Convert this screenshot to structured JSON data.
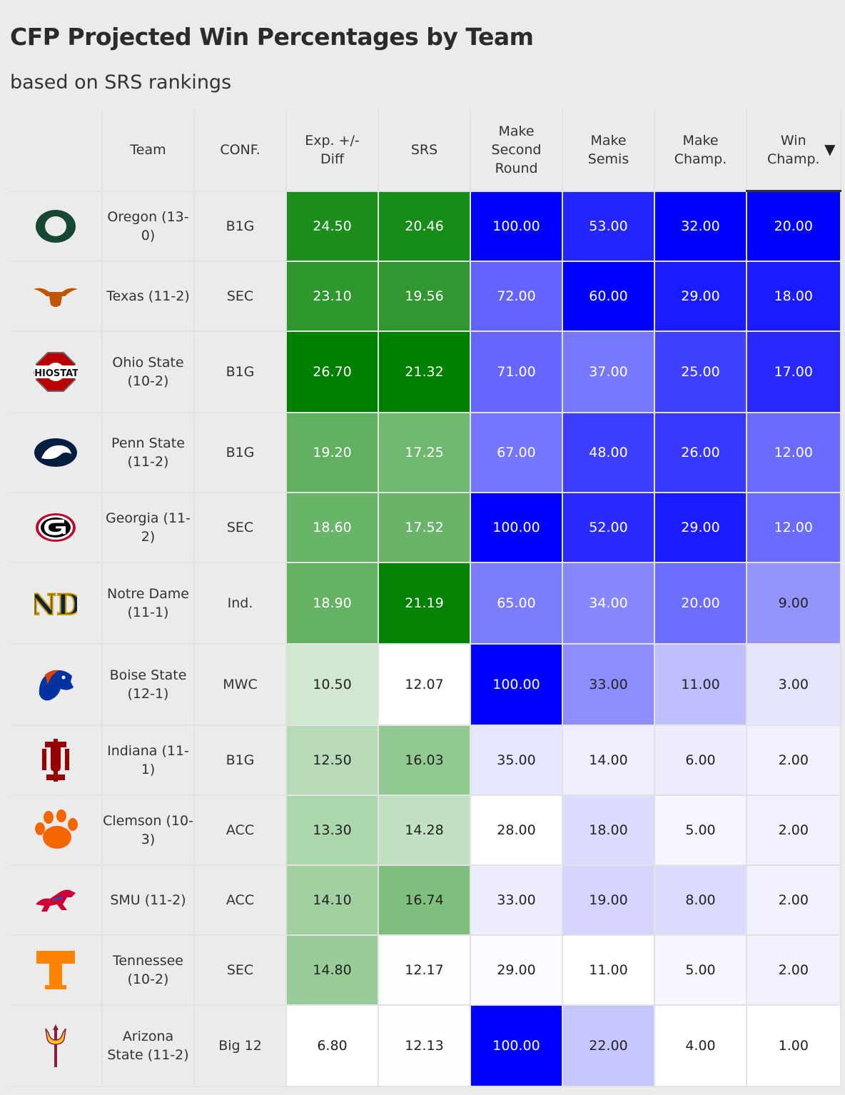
{
  "title": "CFP Projected Win Percentages by Team",
  "subtitle": "based on SRS rankings",
  "columns": [
    "",
    "Team",
    "CONF.",
    "Exp. +/- Diff",
    "SRS",
    "Make Second Round",
    "Make Semis",
    "Make Champ.",
    "Win Champ."
  ],
  "sort_column": "Win Champ.",
  "sort_indicator": "▼",
  "colors": {
    "green": "#008000",
    "blue": "#0000ff",
    "background": "#ebebeb"
  },
  "chart_data": {
    "type": "table",
    "title": "CFP Projected Win Percentages by Team",
    "subtitle": "based on SRS rankings",
    "columns": [
      "Team",
      "CONF.",
      "Exp. +/- Diff",
      "SRS",
      "Make Second Round",
      "Make Semis",
      "Make Champ.",
      "Win Champ."
    ],
    "rows": [
      {
        "team": "Oregon (13-0)",
        "logo": "oregon-o-logo",
        "conf": "B1G",
        "exp": "24.50",
        "srs": "20.46",
        "second": "100.00",
        "semis": "53.00",
        "champ": "32.00",
        "win": "20.00"
      },
      {
        "team": "Texas (11-2)",
        "logo": "longhorn-logo",
        "conf": "SEC",
        "exp": "23.10",
        "srs": "19.56",
        "second": "72.00",
        "semis": "60.00",
        "champ": "29.00",
        "win": "18.00"
      },
      {
        "team": "Ohio State (10-2)",
        "logo": "ohio-state-logo",
        "conf": "B1G",
        "exp": "26.70",
        "srs": "21.32",
        "second": "71.00",
        "semis": "37.00",
        "champ": "25.00",
        "win": "17.00"
      },
      {
        "team": "Penn State (11-2)",
        "logo": "nittany-lion-logo",
        "conf": "B1G",
        "exp": "19.20",
        "srs": "17.25",
        "second": "67.00",
        "semis": "48.00",
        "champ": "26.00",
        "win": "12.00"
      },
      {
        "team": "Georgia (11-2)",
        "logo": "georgia-g-logo",
        "conf": "SEC",
        "exp": "18.60",
        "srs": "17.52",
        "second": "100.00",
        "semis": "52.00",
        "champ": "29.00",
        "win": "12.00"
      },
      {
        "team": "Notre Dame (11-1)",
        "logo": "notre-dame-logo",
        "conf": "Ind.",
        "exp": "18.90",
        "srs": "21.19",
        "second": "65.00",
        "semis": "34.00",
        "champ": "20.00",
        "win": "9.00"
      },
      {
        "team": "Boise State (12-1)",
        "logo": "bronco-logo",
        "conf": "MWC",
        "exp": "10.50",
        "srs": "12.07",
        "second": "100.00",
        "semis": "33.00",
        "champ": "11.00",
        "win": "3.00"
      },
      {
        "team": "Indiana (11-1)",
        "logo": "indiana-iu-logo",
        "conf": "B1G",
        "exp": "12.50",
        "srs": "16.03",
        "second": "35.00",
        "semis": "14.00",
        "champ": "6.00",
        "win": "2.00"
      },
      {
        "team": "Clemson (10-3)",
        "logo": "tiger-paw-logo",
        "conf": "ACC",
        "exp": "13.30",
        "srs": "14.28",
        "second": "28.00",
        "semis": "18.00",
        "champ": "5.00",
        "win": "2.00"
      },
      {
        "team": "SMU (11-2)",
        "logo": "mustang-logo",
        "conf": "ACC",
        "exp": "14.10",
        "srs": "16.74",
        "second": "33.00",
        "semis": "19.00",
        "champ": "8.00",
        "win": "2.00"
      },
      {
        "team": "Tennessee (10-2)",
        "logo": "tennessee-t-logo",
        "conf": "SEC",
        "exp": "14.80",
        "srs": "12.17",
        "second": "29.00",
        "semis": "11.00",
        "champ": "5.00",
        "win": "2.00"
      },
      {
        "team": "Arizona State (11-2)",
        "logo": "pitchfork-logo",
        "conf": "Big 12",
        "exp": "6.80",
        "srs": "12.13",
        "second": "100.00",
        "semis": "22.00",
        "champ": "4.00",
        "win": "1.00"
      }
    ]
  }
}
